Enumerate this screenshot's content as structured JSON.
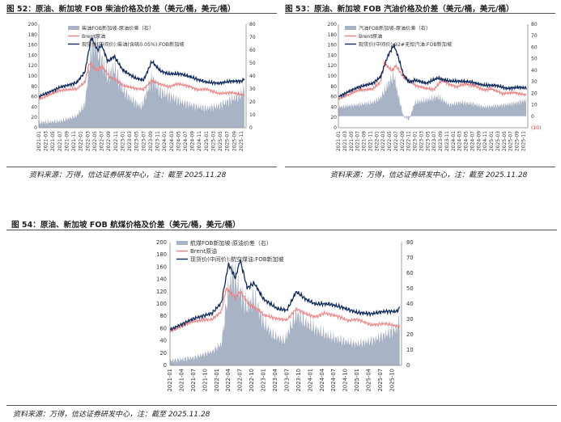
{
  "figures": [
    {
      "title": "图 52：原油、新加坡 FOB 柴油价格及价差（美元/桶，美元/桶）",
      "source": "资料来源：万得，信达证券研发中心，注：截至 2025.11.28"
    },
    {
      "title": "图 53：原油、新加坡 FOB 汽油价格及价差（美元/桶，美元/桶）",
      "source": "资料来源：万得，信达证券研发中心，注：截至 2025.11.28"
    },
    {
      "title": "图 54：原油、新加坡 FOB 航煤价格及价差（美元/桶，美元/桶）",
      "source": "资料来源：万得，信达证券研发中心，注：截至 2025.11.28"
    }
  ],
  "colors": {
    "spread": "#a9b3c6",
    "brent": "#f08080",
    "product": "#0f2a5e",
    "axis": "#888888",
    "text": "#333333"
  },
  "chart_data": [
    {
      "type": "line",
      "x_tick_labels": [
        "2021-01",
        "2021-03",
        "2021-05",
        "2021-07",
        "2021-09",
        "2021-11",
        "2022-01",
        "2022-03",
        "2022-05",
        "2022-07",
        "2022-09",
        "2022-11",
        "2023-01",
        "2023-03",
        "2023-05",
        "2023-07",
        "2023-09",
        "2023-11",
        "2024-01",
        "2024-03",
        "2024-05",
        "2024-07",
        "2024-09",
        "2024-11",
        "2025-01",
        "2025-03",
        "2025-05",
        "2025-07",
        "2025-09",
        "2025-11"
      ],
      "y_left": {
        "ticks": [
          0,
          20,
          40,
          60,
          80,
          100,
          120,
          140,
          160,
          180,
          200
        ],
        "ylim": [
          0,
          200
        ]
      },
      "y_right": {
        "ticks": [
          0,
          10,
          20,
          30,
          40,
          50,
          60,
          70,
          80
        ],
        "ylim": [
          0,
          80
        ]
      },
      "legend_position": "top-left",
      "series": [
        {
          "name": "柴油FOB新加坡-原油价差（右）",
          "kind": "area",
          "axis": "right",
          "x": [
            2021.0,
            2021.5,
            2021.9,
            2022.1,
            2022.25,
            2022.35,
            2022.5,
            2022.65,
            2022.8,
            2023.0,
            2023.2,
            2023.45,
            2023.7,
            2023.9,
            2024.1,
            2024.4,
            2024.7,
            2025.0,
            2025.3,
            2025.6,
            2025.85,
            2025.91
          ],
          "values": [
            4,
            5,
            9,
            18,
            62,
            66,
            52,
            40,
            46,
            30,
            22,
            16,
            38,
            28,
            25,
            20,
            17,
            15,
            17,
            22,
            26,
            33
          ]
        },
        {
          "name": "Brent原油",
          "kind": "line",
          "axis": "left",
          "x": [
            2021.0,
            2021.5,
            2021.9,
            2022.1,
            2022.2,
            2022.4,
            2022.5,
            2022.7,
            2022.9,
            2023.0,
            2023.3,
            2023.5,
            2023.7,
            2023.9,
            2024.1,
            2024.3,
            2024.6,
            2024.8,
            2025.0,
            2025.3,
            2025.6,
            2025.85,
            2025.91
          ],
          "values": [
            55,
            72,
            75,
            88,
            125,
            110,
            120,
            98,
            90,
            82,
            76,
            74,
            92,
            84,
            79,
            85,
            80,
            73,
            75,
            66,
            68,
            64,
            63
          ]
        },
        {
          "name": "现货价(中间价):柴油(含硫0.05%):FOB新加坡",
          "kind": "line",
          "axis": "left",
          "x": [
            2021.0,
            2021.5,
            2021.9,
            2022.1,
            2022.25,
            2022.4,
            2022.5,
            2022.65,
            2022.8,
            2023.0,
            2023.3,
            2023.5,
            2023.7,
            2023.9,
            2024.1,
            2024.4,
            2024.7,
            2025.0,
            2025.3,
            2025.6,
            2025.85,
            2025.91
          ],
          "values": [
            60,
            78,
            87,
            108,
            175,
            150,
            160,
            128,
            138,
            112,
            96,
            92,
            128,
            110,
            104,
            104,
            96,
            88,
            86,
            90,
            90,
            95
          ]
        }
      ]
    },
    {
      "type": "line",
      "x_tick_labels": [
        "2021-01",
        "2021-03",
        "2021-05",
        "2021-07",
        "2021-09",
        "2021-11",
        "2022-01",
        "2022-03",
        "2022-05",
        "2022-07",
        "2022-09",
        "2022-11",
        "2023-01",
        "2023-03",
        "2023-05",
        "2023-07",
        "2023-09",
        "2023-11",
        "2024-01",
        "2024-03",
        "2024-05",
        "2024-07",
        "2024-09",
        "2024-11",
        "2025-01",
        "2025-03",
        "2025-05",
        "2025-07",
        "2025-09",
        "2025-11"
      ],
      "y_left": {
        "ticks": [
          0,
          20,
          40,
          60,
          80,
          100,
          120,
          140,
          160,
          180,
          200
        ],
        "ylim": [
          0,
          200
        ]
      },
      "y_right": {
        "ticks": [
          "(10)",
          "0",
          "10",
          "20",
          "30",
          "40",
          "50",
          "60",
          "70",
          "80"
        ],
        "ylim": [
          -10,
          80
        ]
      },
      "legend_position": "top-left",
      "series": [
        {
          "name": "汽油FOB新加坡-原油价差（右）",
          "kind": "area",
          "axis": "right",
          "x": [
            2021.0,
            2021.5,
            2021.9,
            2022.1,
            2022.3,
            2022.45,
            2022.55,
            2022.7,
            2022.85,
            2023.0,
            2023.3,
            2023.6,
            2023.9,
            2024.2,
            2024.5,
            2024.8,
            2025.1,
            2025.4,
            2025.7,
            2025.91
          ],
          "values": [
            8,
            10,
            12,
            16,
            28,
            36,
            20,
            0,
            -3,
            12,
            14,
            17,
            10,
            12,
            11,
            8,
            9,
            10,
            12,
            14
          ]
        },
        {
          "name": "Brent原油",
          "kind": "line",
          "axis": "left",
          "x": [
            2021.0,
            2021.5,
            2021.9,
            2022.1,
            2022.2,
            2022.4,
            2022.5,
            2022.7,
            2022.9,
            2023.0,
            2023.3,
            2023.5,
            2023.7,
            2023.9,
            2024.1,
            2024.3,
            2024.6,
            2024.8,
            2025.0,
            2025.3,
            2025.6,
            2025.85,
            2025.91
          ],
          "values": [
            55,
            72,
            75,
            88,
            125,
            110,
            120,
            98,
            90,
            82,
            76,
            74,
            92,
            84,
            79,
            85,
            80,
            73,
            75,
            66,
            68,
            64,
            63
          ]
        },
        {
          "name": "现货价(中间价):92#无铅汽油:FOB新加坡",
          "kind": "line",
          "axis": "left",
          "x": [
            2021.0,
            2021.5,
            2021.9,
            2022.1,
            2022.3,
            2022.45,
            2022.55,
            2022.7,
            2022.85,
            2023.0,
            2023.3,
            2023.6,
            2023.9,
            2024.2,
            2024.5,
            2024.8,
            2025.1,
            2025.4,
            2025.7,
            2025.91
          ],
          "values": [
            60,
            78,
            86,
            98,
            140,
            160,
            140,
            102,
            88,
            92,
            86,
            96,
            90,
            90,
            88,
            82,
            82,
            76,
            78,
            77
          ]
        }
      ]
    },
    {
      "type": "line",
      "x_tick_labels": [
        "2021-01",
        "2021-04",
        "2021-07",
        "2021-10",
        "2022-01",
        "2022-04",
        "2022-07",
        "2022-10",
        "2023-01",
        "2023-04",
        "2023-07",
        "2023-10",
        "2024-01",
        "2024-04",
        "2024-07",
        "2024-10",
        "2025-01",
        "2025-04",
        "2025-07",
        "2025-10"
      ],
      "y_left": {
        "ticks": [
          0,
          20,
          40,
          60,
          80,
          100,
          120,
          140,
          160,
          180,
          200
        ],
        "ylim": [
          0,
          200
        ]
      },
      "y_right": {
        "ticks": [
          0,
          10,
          20,
          30,
          40,
          50,
          60,
          70,
          80
        ],
        "ylim": [
          0,
          80
        ]
      },
      "legend_position": "top-left",
      "series": [
        {
          "name": "航煤FOB新加坡-原油价差（右）",
          "kind": "area",
          "axis": "right",
          "x": [
            2021.0,
            2021.5,
            2021.9,
            2022.1,
            2022.25,
            2022.35,
            2022.5,
            2022.65,
            2022.8,
            2023.0,
            2023.2,
            2023.45,
            2023.7,
            2023.9,
            2024.1,
            2024.4,
            2024.7,
            2025.0,
            2025.3,
            2025.6,
            2025.85,
            2025.91
          ],
          "values": [
            3,
            5,
            9,
            14,
            50,
            60,
            48,
            38,
            44,
            28,
            20,
            16,
            34,
            28,
            24,
            19,
            16,
            14,
            16,
            20,
            24,
            30
          ]
        },
        {
          "name": "Brent原油",
          "kind": "line",
          "axis": "left",
          "x": [
            2021.0,
            2021.5,
            2021.9,
            2022.1,
            2022.2,
            2022.4,
            2022.5,
            2022.7,
            2022.9,
            2023.0,
            2023.3,
            2023.5,
            2023.7,
            2023.9,
            2024.1,
            2024.3,
            2024.6,
            2024.8,
            2025.0,
            2025.3,
            2025.6,
            2025.85,
            2025.91
          ],
          "values": [
            55,
            72,
            75,
            88,
            125,
            110,
            120,
            98,
            90,
            82,
            76,
            74,
            92,
            84,
            79,
            85,
            80,
            73,
            75,
            66,
            68,
            64,
            63
          ]
        },
        {
          "name": "现货价(中间价):航空煤油:FOB新加坡",
          "kind": "line",
          "axis": "left",
          "x": [
            2021.0,
            2021.5,
            2021.9,
            2022.1,
            2022.25,
            2022.4,
            2022.5,
            2022.65,
            2022.8,
            2023.0,
            2023.3,
            2023.5,
            2023.7,
            2023.9,
            2024.1,
            2024.4,
            2024.7,
            2025.0,
            2025.3,
            2025.6,
            2025.85,
            2025.91
          ],
          "values": [
            58,
            76,
            85,
            102,
            165,
            142,
            172,
            126,
            134,
            108,
            92,
            90,
            120,
            108,
            100,
            100,
            94,
            86,
            84,
            88,
            88,
            94
          ]
        }
      ]
    }
  ]
}
